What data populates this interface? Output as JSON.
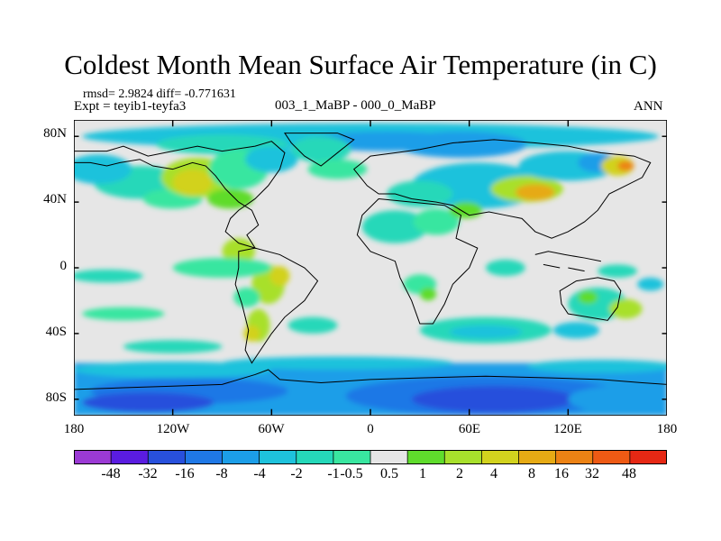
{
  "title": "Coldest Month Mean Surface Air Temperature (in C)",
  "stats": {
    "rmsd_line": "rmsd= 2.9824 diff= -0.771631",
    "expt_line": "Expt = teyib1-teyfa3",
    "experiment": "003_1_MaBP - 000_0_MaBP",
    "season": "ANN"
  },
  "axes": {
    "lat_labels": [
      "80N",
      "40N",
      "0",
      "40S",
      "80S"
    ],
    "lon_labels": [
      "180",
      "120W",
      "60W",
      "0",
      "60E",
      "120E",
      "180"
    ]
  },
  "colorbar": {
    "colors": [
      "#9b3ad4",
      "#5a1ce0",
      "#2850dc",
      "#1f78e6",
      "#1c9ee8",
      "#1ec2dc",
      "#25d8b9",
      "#39e6a0",
      "#e6e6e6",
      "#5fdc2c",
      "#a8e02c",
      "#d2d21e",
      "#e6aa14",
      "#ec8214",
      "#ee5a14",
      "#e62814"
    ],
    "labels": [
      "-48",
      "-32",
      "-16",
      "-8",
      "-4",
      "-2",
      "-1",
      "-0.5",
      "0.5",
      "1",
      "2",
      "4",
      "8",
      "16",
      "32",
      "48"
    ]
  }
}
